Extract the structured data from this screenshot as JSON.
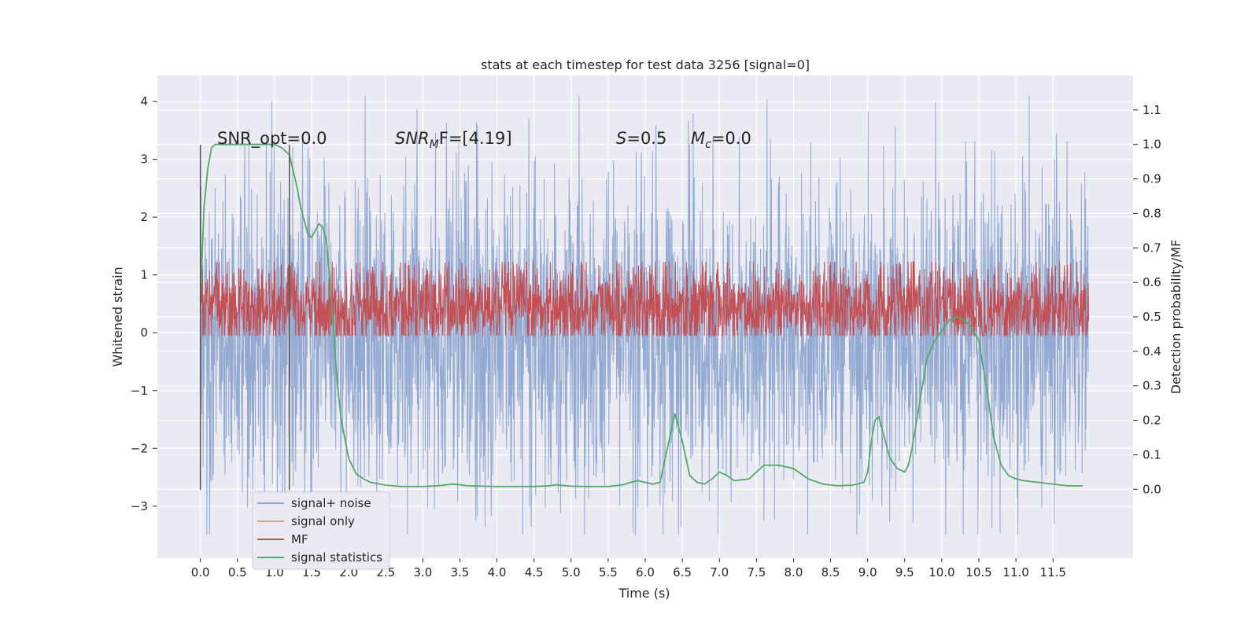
{
  "chart_data": {
    "type": "line",
    "title": "stats at each timestep for test data 3256 [signal=0]",
    "xlabel": "Time (s)",
    "ylabel_left": "Whitened strain",
    "ylabel_right": "Detection probability/MF",
    "xlim": [
      -0.58,
      12.58
    ],
    "ylim_left": [
      -3.9,
      4.45
    ],
    "ylim_right": [
      -0.2,
      1.2
    ],
    "x_ticks": [
      "0.0",
      "0.5",
      "1.0",
      "1.5",
      "2.0",
      "2.5",
      "3.0",
      "3.5",
      "4.0",
      "4.5",
      "5.0",
      "5.5",
      "6.0",
      "6.5",
      "7.0",
      "7.5",
      "8.0",
      "8.5",
      "9.0",
      "9.5",
      "10.0",
      "10.5",
      "11.0",
      "11.5"
    ],
    "y_ticks_left": [
      "−3",
      "−2",
      "−1",
      "0",
      "1",
      "2",
      "3",
      "4"
    ],
    "y_ticks_right": [
      "0.0",
      "0.1",
      "0.2",
      "0.3",
      "0.4",
      "0.5",
      "0.6",
      "0.7",
      "0.8",
      "0.9",
      "1.0",
      "1.1"
    ],
    "grid": true,
    "legend_placement": "lower-left",
    "annotations": {
      "snr_opt": "SNR_opt=0.0",
      "snr_mf_main": "SNR",
      "snr_mf_sub": "M",
      "snr_mf_rest": "F=[4.19]",
      "s_main": "S",
      "s_rest": "=0.5",
      "mc_main": "M",
      "mc_sub": "c",
      "mc_rest": "=0.0"
    },
    "vertical_lines": [
      {
        "x": 0.0,
        "y_range": [
          -2.72,
          3.25
        ],
        "color": "#555555"
      },
      {
        "x": 1.2,
        "y_range": [
          -2.72,
          3.25
        ],
        "color": "#555555"
      }
    ],
    "series": [
      {
        "name": "signal+ noise",
        "axis": "left",
        "color": "#8ea5cf",
        "kind": "noise",
        "x_range": [
          0.0,
          11.98
        ],
        "envelope_typical": [
          -1.6,
          1.5
        ],
        "envelope_peak": [
          -3.5,
          4.1
        ]
      },
      {
        "name": "signal only",
        "axis": "left",
        "color": "#e8a07a",
        "kind": "flat",
        "y": 0.0
      },
      {
        "name": "MF",
        "axis": "right",
        "color": "#c44e52",
        "kind": "noise",
        "x_range": [
          0.0,
          11.98
        ],
        "envelope_typical": [
          0.455,
          0.6
        ],
        "envelope_peak": [
          0.445,
          0.66
        ]
      },
      {
        "name": "signal statistics",
        "axis": "right",
        "color": "#55a868",
        "kind": "line",
        "x": [
          0.0,
          0.05,
          0.1,
          0.15,
          0.2,
          0.3,
          0.4,
          0.5,
          0.6,
          0.7,
          0.8,
          0.9,
          1.0,
          1.1,
          1.2,
          1.3,
          1.35,
          1.4,
          1.45,
          1.5,
          1.55,
          1.6,
          1.65,
          1.7,
          1.75,
          1.8,
          1.85,
          1.9,
          2.0,
          2.1,
          2.2,
          2.3,
          2.5,
          2.7,
          3.0,
          3.2,
          3.4,
          3.5,
          3.6,
          3.8,
          4.0,
          4.2,
          4.5,
          4.7,
          4.8,
          5.0,
          5.2,
          5.5,
          5.7,
          5.8,
          5.9,
          6.0,
          6.1,
          6.2,
          6.3,
          6.4,
          6.5,
          6.6,
          6.7,
          6.8,
          6.9,
          7.0,
          7.1,
          7.2,
          7.4,
          7.5,
          7.6,
          7.8,
          8.0,
          8.2,
          8.4,
          8.6,
          8.8,
          8.95,
          9.0,
          9.05,
          9.1,
          9.15,
          9.2,
          9.3,
          9.4,
          9.5,
          9.55,
          9.6,
          9.7,
          9.8,
          9.9,
          10.0,
          10.1,
          10.2,
          10.3,
          10.4,
          10.5,
          10.6,
          10.7,
          10.8,
          10.9,
          11.0,
          11.1,
          11.3,
          11.5,
          11.7,
          11.9
        ],
        "y": [
          0.55,
          0.82,
          0.93,
          0.99,
          1.0,
          1.0,
          1.0,
          1.0,
          1.0,
          1.0,
          1.0,
          1.0,
          1.0,
          0.99,
          0.97,
          0.88,
          0.82,
          0.78,
          0.74,
          0.73,
          0.75,
          0.77,
          0.76,
          0.72,
          0.6,
          0.45,
          0.3,
          0.2,
          0.09,
          0.045,
          0.03,
          0.02,
          0.012,
          0.008,
          0.008,
          0.01,
          0.015,
          0.013,
          0.01,
          0.009,
          0.008,
          0.008,
          0.008,
          0.01,
          0.013,
          0.009,
          0.008,
          0.008,
          0.013,
          0.02,
          0.025,
          0.02,
          0.015,
          0.02,
          0.12,
          0.22,
          0.14,
          0.04,
          0.02,
          0.015,
          0.03,
          0.05,
          0.04,
          0.025,
          0.03,
          0.05,
          0.07,
          0.07,
          0.06,
          0.03,
          0.015,
          0.01,
          0.012,
          0.02,
          0.05,
          0.14,
          0.2,
          0.21,
          0.17,
          0.09,
          0.06,
          0.05,
          0.07,
          0.12,
          0.25,
          0.38,
          0.43,
          0.46,
          0.49,
          0.5,
          0.49,
          0.47,
          0.43,
          0.3,
          0.15,
          0.07,
          0.04,
          0.03,
          0.025,
          0.02,
          0.015,
          0.01,
          0.01
        ]
      }
    ]
  }
}
